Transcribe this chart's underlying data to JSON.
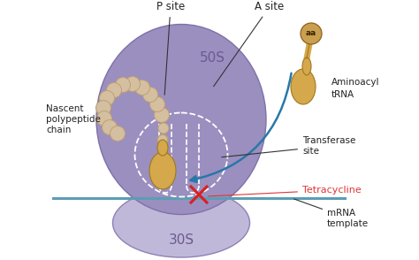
{
  "bg_color": "#ffffff",
  "c50S": "#9b8fc0",
  "c30S": "#c0b8d8",
  "mrna_color": "#5b9db5",
  "tRNA_color": "#d4a84b",
  "bead_color": "#d4bfa0",
  "bead_edge": "#c0a070",
  "arrow_color": "#2878a8",
  "x_color": "#d82020",
  "tetracycline_color": "#e03535",
  "white": "#ffffff",
  "dark_label": "#222222",
  "50S_label_color": "#6a5a90",
  "30S_label_color": "#6a5a90",
  "labels": {
    "P_site": "P site",
    "A_site": "A site",
    "50S": "50S",
    "30S": "30S",
    "nascent": "Nascent\npolypeptide\nchain",
    "aminoacyl": "Aminoacyl\ntRNA",
    "transferase": "Transferase\nsite",
    "tetracycline": "Tetracycline",
    "mrna": "mRNA\ntemplate",
    "aa": "aa"
  }
}
